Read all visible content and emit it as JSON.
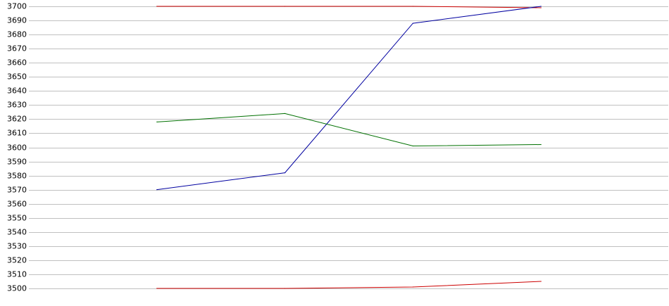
{
  "chart_data": {
    "type": "line",
    "title": "",
    "xlabel": "",
    "ylabel": "",
    "x": [
      1,
      2,
      3,
      4
    ],
    "xlim": [
      0,
      5
    ],
    "ylim": [
      3500,
      3700
    ],
    "yticks": [
      3700,
      3690,
      3680,
      3670,
      3660,
      3650,
      3640,
      3630,
      3620,
      3610,
      3600,
      3590,
      3580,
      3570,
      3560,
      3550,
      3540,
      3530,
      3520,
      3510,
      3500
    ],
    "grid": true,
    "legend": "none",
    "series": [
      {
        "key": "red-top",
        "color": "#cc0000",
        "values": [
          3700,
          3700,
          3700,
          3699
        ]
      },
      {
        "key": "blue",
        "color": "#0000a0",
        "values": [
          3570,
          3582,
          3688,
          3700
        ]
      },
      {
        "key": "green",
        "color": "#007000",
        "values": [
          3618,
          3624,
          3601,
          3602
        ]
      },
      {
        "key": "red-bottom",
        "color": "#cc0000",
        "values": [
          3500,
          3500,
          3501,
          3505
        ]
      }
    ]
  }
}
